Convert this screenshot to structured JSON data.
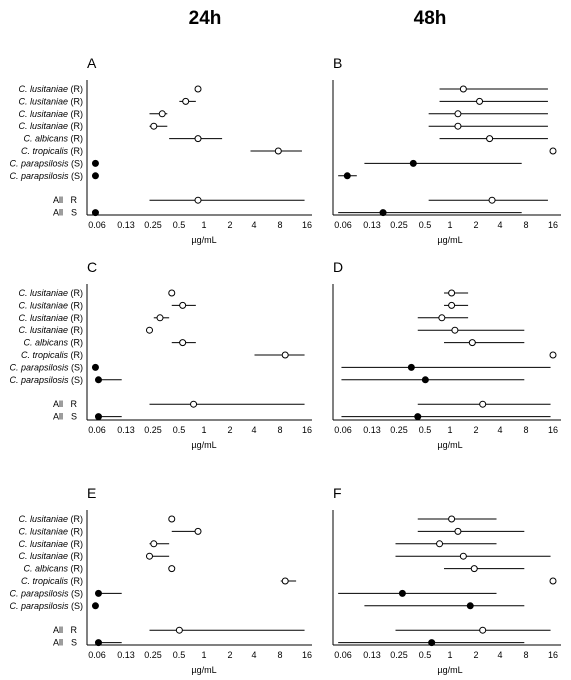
{
  "column_titles": [
    "24h",
    "48h"
  ],
  "chart_data": [
    {
      "panel": "A",
      "type": "scatter",
      "timepoint": "24h",
      "xscale": "log2",
      "xlabel": "µg/mL",
      "xticks": [
        "0.06",
        "0.13",
        "0.25",
        "0.5",
        "1",
        "2",
        "4",
        "8",
        "16"
      ],
      "rows": [
        {
          "species": "C. lusitaniae",
          "group": "R",
          "value": 0.9,
          "range": null,
          "resistant": true
        },
        {
          "species": "C. lusitaniae",
          "group": "R",
          "value": 0.65,
          "range": [
            0.55,
            0.85
          ],
          "resistant": true
        },
        {
          "species": "C. lusitaniae",
          "group": "R",
          "value": 0.35,
          "range": [
            0.25,
            0.4
          ],
          "resistant": true
        },
        {
          "species": "C. lusitaniae",
          "group": "R",
          "value": 0.28,
          "range": [
            0.25,
            0.4
          ],
          "resistant": true
        },
        {
          "species": "C. albicans",
          "group": "R",
          "value": 0.9,
          "range": [
            0.42,
            1.7
          ],
          "resistant": true
        },
        {
          "species": "C. tropicalis",
          "group": "R",
          "value": 7.5,
          "range": [
            3.6,
            14
          ],
          "resistant": true
        },
        {
          "species": "C. parapsilosis",
          "group": "S",
          "value": 0.06,
          "range": null,
          "resistant": false
        },
        {
          "species": "C. parapsilosis",
          "group": "S",
          "value": 0.06,
          "range": null,
          "resistant": false
        }
      ],
      "summary": [
        {
          "label": "All",
          "group": "R",
          "value": 0.9,
          "range": [
            0.25,
            15
          ],
          "resistant": true
        },
        {
          "label": "All",
          "group": "S",
          "value": 0.06,
          "range": null,
          "resistant": false
        }
      ]
    },
    {
      "panel": "B",
      "type": "scatter",
      "timepoint": "48h",
      "xscale": "log2",
      "xlabel": "µg/mL",
      "xticks": [
        "0.06",
        "0.13",
        "0.25",
        "0.5",
        "1",
        "2",
        "4",
        "8",
        "16"
      ],
      "rows": [
        {
          "species": "C. lusitaniae",
          "group": "R",
          "value": 1.5,
          "range": [
            0.8,
            14
          ],
          "resistant": true
        },
        {
          "species": "C. lusitaniae",
          "group": "R",
          "value": 2.3,
          "range": [
            0.8,
            14
          ],
          "resistant": true
        },
        {
          "species": "C. lusitaniae",
          "group": "R",
          "value": 1.3,
          "range": [
            0.6,
            14
          ],
          "resistant": true
        },
        {
          "species": "C. lusitaniae",
          "group": "R",
          "value": 1.3,
          "range": [
            0.6,
            14
          ],
          "resistant": true
        },
        {
          "species": "C. albicans",
          "group": "R",
          "value": 3.0,
          "range": [
            0.8,
            14
          ],
          "resistant": true
        },
        {
          "species": "C. tropicalis",
          "group": "R",
          "value": 16,
          "range": null,
          "resistant": true
        },
        {
          "species": "C. parapsilosis",
          "group": "S",
          "value": 0.4,
          "range": [
            0.11,
            7
          ],
          "resistant": false
        },
        {
          "species": "C. parapsilosis",
          "group": "S",
          "value": 0.07,
          "range": [
            0.055,
            0.09
          ],
          "resistant": false
        }
      ],
      "summary": [
        {
          "label": "All",
          "group": "R",
          "value": 3.2,
          "range": [
            0.6,
            14
          ],
          "resistant": true
        },
        {
          "label": "All",
          "group": "S",
          "value": 0.18,
          "range": [
            0.055,
            7
          ],
          "resistant": false
        }
      ]
    },
    {
      "panel": "C",
      "type": "scatter",
      "timepoint": "24h",
      "xscale": "log2",
      "xlabel": "µg/mL",
      "xticks": [
        "0.06",
        "0.13",
        "0.25",
        "0.5",
        "1",
        "2",
        "4",
        "8",
        "16"
      ],
      "rows": [
        {
          "species": "C. lusitaniae",
          "group": "R",
          "value": 0.45,
          "range": null,
          "resistant": true
        },
        {
          "species": "C. lusitaniae",
          "group": "R",
          "value": 0.6,
          "range": [
            0.45,
            0.85
          ],
          "resistant": true
        },
        {
          "species": "C. lusitaniae",
          "group": "R",
          "value": 0.33,
          "range": [
            0.28,
            0.42
          ],
          "resistant": true
        },
        {
          "species": "C. lusitaniae",
          "group": "R",
          "value": 0.25,
          "range": null,
          "resistant": true
        },
        {
          "species": "C. albicans",
          "group": "R",
          "value": 0.6,
          "range": [
            0.45,
            0.85
          ],
          "resistant": true
        },
        {
          "species": "C. tropicalis",
          "group": "R",
          "value": 9,
          "range": [
            4,
            15
          ],
          "resistant": true
        },
        {
          "species": "C. parapsilosis",
          "group": "S",
          "value": 0.06,
          "range": null,
          "resistant": false
        },
        {
          "species": "C. parapsilosis",
          "group": "S",
          "value": 0.065,
          "range": [
            0.06,
            0.12
          ],
          "resistant": false
        }
      ],
      "summary": [
        {
          "label": "All",
          "group": "R",
          "value": 0.8,
          "range": [
            0.25,
            15
          ],
          "resistant": true
        },
        {
          "label": "All",
          "group": "S",
          "value": 0.065,
          "range": [
            0.06,
            0.12
          ],
          "resistant": false
        }
      ]
    },
    {
      "panel": "D",
      "type": "scatter",
      "timepoint": "48h",
      "xscale": "log2",
      "xlabel": "µg/mL",
      "xticks": [
        "0.06",
        "0.13",
        "0.25",
        "0.5",
        "1",
        "2",
        "4",
        "8",
        "16"
      ],
      "rows": [
        {
          "species": "C. lusitaniae",
          "group": "R",
          "value": 1.1,
          "range": [
            0.9,
            1.7
          ],
          "resistant": true
        },
        {
          "species": "C. lusitaniae",
          "group": "R",
          "value": 1.1,
          "range": [
            0.9,
            1.7
          ],
          "resistant": true
        },
        {
          "species": "C. lusitaniae",
          "group": "R",
          "value": 0.85,
          "range": [
            0.45,
            1.7
          ],
          "resistant": true
        },
        {
          "species": "C. lusitaniae",
          "group": "R",
          "value": 1.2,
          "range": [
            0.45,
            7.5
          ],
          "resistant": true
        },
        {
          "species": "C. albicans",
          "group": "R",
          "value": 1.9,
          "range": [
            0.9,
            7.5
          ],
          "resistant": true
        },
        {
          "species": "C. tropicalis",
          "group": "R",
          "value": 16,
          "range": null,
          "resistant": true
        },
        {
          "species": "C. parapsilosis",
          "group": "S",
          "value": 0.38,
          "range": [
            0.06,
            15
          ],
          "resistant": false
        },
        {
          "species": "C. parapsilosis",
          "group": "S",
          "value": 0.55,
          "range": [
            0.06,
            7.5
          ],
          "resistant": false
        }
      ],
      "summary": [
        {
          "label": "All",
          "group": "R",
          "value": 2.5,
          "range": [
            0.45,
            15
          ],
          "resistant": true
        },
        {
          "label": "All",
          "group": "S",
          "value": 0.45,
          "range": [
            0.06,
            15
          ],
          "resistant": false
        }
      ]
    },
    {
      "panel": "E",
      "type": "scatter",
      "timepoint": "24h",
      "xscale": "log2",
      "xlabel": "µg/mL",
      "xticks": [
        "0.06",
        "0.13",
        "0.25",
        "0.5",
        "1",
        "2",
        "4",
        "8",
        "16"
      ],
      "rows": [
        {
          "species": "C. lusitaniae",
          "group": "R",
          "value": 0.45,
          "range": null,
          "resistant": true
        },
        {
          "species": "C. lusitaniae",
          "group": "R",
          "value": 0.9,
          "range": [
            0.45,
            0.95
          ],
          "resistant": true
        },
        {
          "species": "C. lusitaniae",
          "group": "R",
          "value": 0.28,
          "range": [
            0.25,
            0.42
          ],
          "resistant": true
        },
        {
          "species": "C. lusitaniae",
          "group": "R",
          "value": 0.25,
          "range": [
            0.25,
            0.42
          ],
          "resistant": true
        },
        {
          "species": "C. albicans",
          "group": "R",
          "value": 0.45,
          "range": null,
          "resistant": true
        },
        {
          "species": "C. tropicalis",
          "group": "R",
          "value": 9,
          "range": [
            8,
            12
          ],
          "resistant": true
        },
        {
          "species": "C. parapsilosis",
          "group": "S",
          "value": 0.065,
          "range": [
            0.06,
            0.12
          ],
          "resistant": false
        },
        {
          "species": "C. parapsilosis",
          "group": "S",
          "value": 0.06,
          "range": null,
          "resistant": false
        }
      ],
      "summary": [
        {
          "label": "All",
          "group": "R",
          "value": 0.55,
          "range": [
            0.25,
            15
          ],
          "resistant": true
        },
        {
          "label": "All",
          "group": "S",
          "value": 0.065,
          "range": [
            0.06,
            0.12
          ],
          "resistant": false
        }
      ]
    },
    {
      "panel": "F",
      "type": "scatter",
      "timepoint": "48h",
      "xscale": "log2",
      "xlabel": "µg/mL",
      "xticks": [
        "0.06",
        "0.13",
        "0.25",
        "0.5",
        "1",
        "2",
        "4",
        "8",
        "16"
      ],
      "rows": [
        {
          "species": "C. lusitaniae",
          "group": "R",
          "value": 1.1,
          "range": [
            0.45,
            3.6
          ],
          "resistant": true
        },
        {
          "species": "C. lusitaniae",
          "group": "R",
          "value": 1.3,
          "range": [
            0.45,
            7.5
          ],
          "resistant": true
        },
        {
          "species": "C. lusitaniae",
          "group": "R",
          "value": 0.8,
          "range": [
            0.25,
            3.6
          ],
          "resistant": true
        },
        {
          "species": "C. lusitaniae",
          "group": "R",
          "value": 1.5,
          "range": [
            0.25,
            15
          ],
          "resistant": true
        },
        {
          "species": "C. albicans",
          "group": "R",
          "value": 2.0,
          "range": [
            0.9,
            7.5
          ],
          "resistant": true
        },
        {
          "species": "C. tropicalis",
          "group": "R",
          "value": 16,
          "range": null,
          "resistant": true
        },
        {
          "species": "C. parapsilosis",
          "group": "S",
          "value": 0.3,
          "range": [
            0.055,
            3.6
          ],
          "resistant": false
        },
        {
          "species": "C. parapsilosis",
          "group": "S",
          "value": 1.8,
          "range": [
            0.11,
            7.5
          ],
          "resistant": false
        }
      ],
      "summary": [
        {
          "label": "All",
          "group": "R",
          "value": 2.5,
          "range": [
            0.25,
            15
          ],
          "resistant": true
        },
        {
          "label": "All",
          "group": "S",
          "value": 0.65,
          "range": [
            0.055,
            7.5
          ],
          "resistant": false
        }
      ]
    }
  ]
}
